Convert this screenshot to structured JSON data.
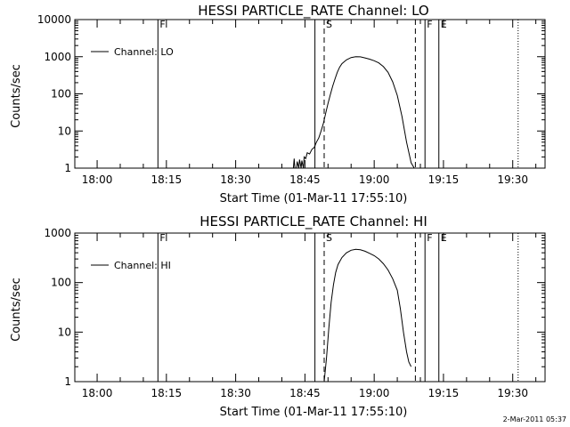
{
  "chart_data": [
    {
      "type": "line",
      "title": "HESSI PARTICLE_RATE Channel: LO",
      "xlabel": "Start Time (01-Mar-11 17:55:10)",
      "ylabel": "Counts/sec",
      "yscale": "log",
      "ylim": [
        1,
        10000
      ],
      "xlim": [
        "17:55:10",
        "19:37:00"
      ],
      "xticks": [
        "18:00",
        "18:15",
        "18:30",
        "18:45",
        "19:00",
        "19:15",
        "19:30"
      ],
      "yticks": [
        "1",
        "10",
        "100",
        "1000",
        "10000"
      ],
      "legend": {
        "position": "top-left",
        "entries": [
          "Channel: LO"
        ]
      },
      "series": [
        {
          "name": "Channel: LO",
          "time": [
            "18:42:30",
            "18:42:40",
            "18:42:50",
            "18:43:10",
            "18:43:20",
            "18:43:40",
            "18:43:50",
            "18:44:10",
            "18:44:20",
            "18:44:40",
            "18:44:50",
            "18:45:10",
            "18:45:30",
            "18:46:00",
            "18:46:30",
            "18:47:00",
            "18:47:30",
            "18:48:00",
            "18:48:30",
            "18:49:00",
            "18:49:30",
            "18:50:00",
            "18:50:30",
            "18:51:00",
            "18:51:30",
            "18:52:00",
            "18:52:30",
            "18:53:00",
            "18:54:00",
            "18:55:00",
            "18:56:00",
            "18:57:00",
            "18:58:00",
            "18:59:00",
            "19:00:00",
            "19:01:00",
            "19:02:00",
            "19:03:00",
            "19:04:00",
            "19:05:00",
            "19:06:00",
            "19:07:00",
            "19:08:00",
            "19:08:40"
          ],
          "values": [
            1,
            1.8,
            1,
            1,
            1.5,
            1,
            1.7,
            1,
            1.6,
            1,
            2,
            1.8,
            2.6,
            2.4,
            3.2,
            3.6,
            5,
            6.5,
            10,
            16,
            30,
            55,
            95,
            160,
            250,
            380,
            520,
            650,
            820,
            950,
            1000,
            990,
            930,
            860,
            780,
            680,
            540,
            380,
            210,
            90,
            25,
            5,
            1.4,
            1
          ]
        }
      ],
      "markers": [
        {
          "label": "F",
          "time": "18:13:10",
          "style": "solid"
        },
        {
          "label": "",
          "time": "18:47:10",
          "style": "solid"
        },
        {
          "label": "S",
          "time": "18:49:10",
          "style": "dashed"
        },
        {
          "label": "",
          "time": "19:08:55",
          "style": "dashed"
        },
        {
          "label": "F",
          "time": "19:11:00",
          "style": "solid"
        },
        {
          "label": "E",
          "time": "19:14:00",
          "style": "solid"
        },
        {
          "label": "",
          "time": "19:31:10",
          "style": "dotted"
        }
      ]
    },
    {
      "type": "line",
      "title": "HESSI PARTICLE_RATE Channel: HI",
      "xlabel": "Start Time (01-Mar-11 17:55:10)",
      "ylabel": "Counts/sec",
      "yscale": "log",
      "ylim": [
        1,
        1000
      ],
      "xlim": [
        "17:55:10",
        "19:37:00"
      ],
      "xticks": [
        "18:00",
        "18:15",
        "18:30",
        "18:45",
        "19:00",
        "19:15",
        "19:30"
      ],
      "yticks": [
        "1",
        "10",
        "100",
        "1000"
      ],
      "legend": {
        "position": "top-left",
        "entries": [
          "Channel: HI"
        ]
      },
      "series": [
        {
          "name": "Channel: HI",
          "time": [
            "18:49:10",
            "18:49:40",
            "18:50:10",
            "18:50:40",
            "18:51:10",
            "18:51:40",
            "18:52:10",
            "18:53:00",
            "18:54:00",
            "18:55:00",
            "18:56:00",
            "18:57:00",
            "18:58:00",
            "18:59:00",
            "19:00:00",
            "19:01:00",
            "19:02:00",
            "19:03:00",
            "19:04:00",
            "19:05:00",
            "19:05:40",
            "19:06:20",
            "19:07:00",
            "19:07:30",
            "19:08:00"
          ],
          "values": [
            1,
            3,
            12,
            40,
            90,
            160,
            230,
            320,
            400,
            450,
            470,
            460,
            430,
            390,
            350,
            300,
            240,
            180,
            120,
            70,
            30,
            10,
            4,
            2.5,
            2
          ]
        }
      ],
      "markers": [
        {
          "label": "F",
          "time": "18:13:10",
          "style": "solid"
        },
        {
          "label": "",
          "time": "18:47:10",
          "style": "solid"
        },
        {
          "label": "S",
          "time": "18:49:10",
          "style": "dashed"
        },
        {
          "label": "",
          "time": "19:08:55",
          "style": "dashed"
        },
        {
          "label": "F",
          "time": "19:11:00",
          "style": "solid"
        },
        {
          "label": "E",
          "time": "19:14:00",
          "style": "solid"
        },
        {
          "label": "",
          "time": "19:31:10",
          "style": "dotted"
        }
      ]
    }
  ],
  "footer": {
    "timestamp": "2-Mar-2011 05:37"
  }
}
